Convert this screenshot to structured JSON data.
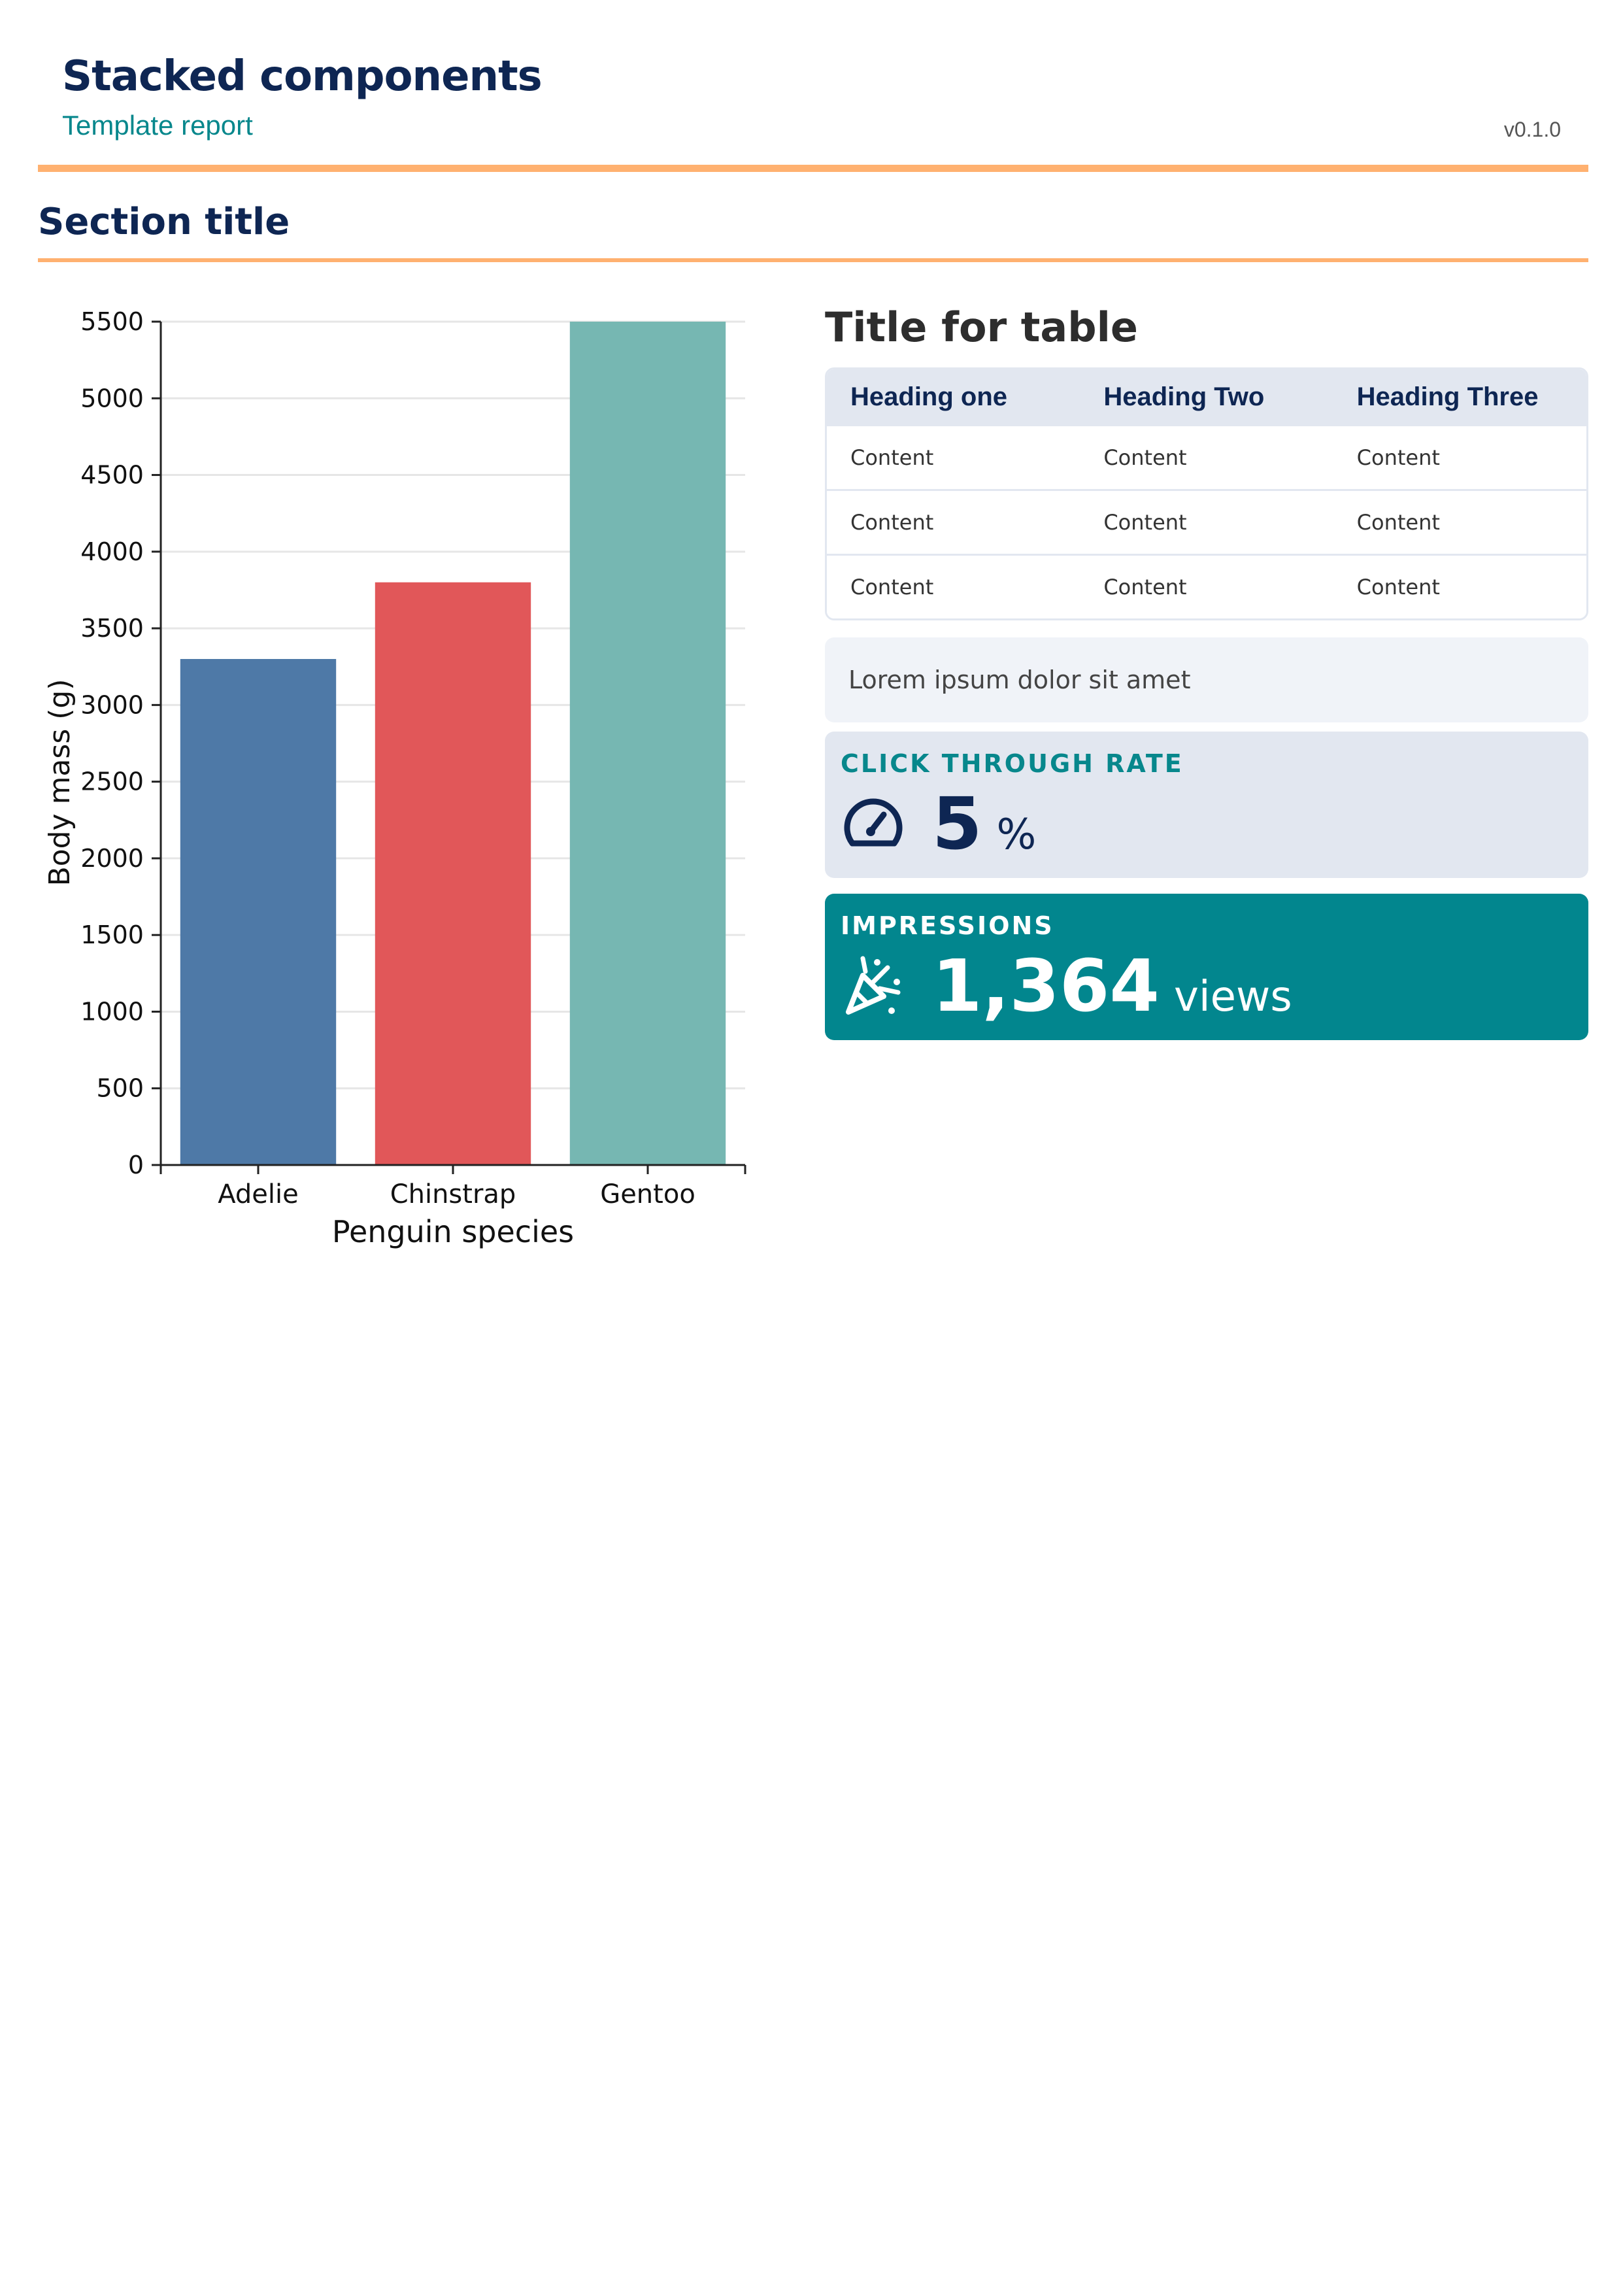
{
  "header": {
    "title": "Stacked components",
    "subtitle": "Template report",
    "version": "v0.1.0"
  },
  "section": {
    "title": "Section title"
  },
  "chart_data": {
    "type": "bar",
    "categories": [
      "Adelie",
      "Chinstrap",
      "Gentoo"
    ],
    "values": [
      3300,
      3800,
      5500
    ],
    "colors": [
      "#4e79a7",
      "#e15759",
      "#76b7b2"
    ],
    "xlabel": "Penguin species",
    "ylabel": "Body mass (g)",
    "ylim": [
      0,
      5500
    ],
    "yticks": [
      0,
      500,
      1000,
      1500,
      2000,
      2500,
      3000,
      3500,
      4000,
      4500,
      5000,
      5500
    ],
    "grid": true
  },
  "table": {
    "title": "Title for table",
    "headers": [
      "Heading one",
      "Heading Two",
      "Heading Three"
    ],
    "rows": [
      [
        "Content",
        "Content",
        "Content"
      ],
      [
        "Content",
        "Content",
        "Content"
      ],
      [
        "Content",
        "Content",
        "Content"
      ]
    ]
  },
  "note": {
    "text": "Lorem ipsum dolor sit amet"
  },
  "kpis": {
    "ctr": {
      "label": "CLICK THROUGH RATE",
      "value": "5",
      "unit": "%",
      "icon": "gauge-icon"
    },
    "impressions": {
      "label": "IMPRESSIONS",
      "value": "1,364",
      "unit": "views",
      "icon": "party-popper-icon"
    }
  },
  "colors": {
    "navy": "#0e2653",
    "teal": "#07878c",
    "accent_rule": "#ffb170",
    "kpi_light": "#e2e7f0",
    "kpi_dark": "#02868e"
  }
}
